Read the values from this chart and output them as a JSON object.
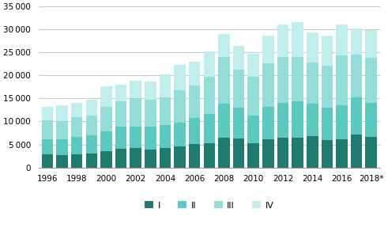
{
  "years": [
    1996,
    1997,
    1998,
    1999,
    2000,
    2001,
    2002,
    2003,
    2004,
    2005,
    2006,
    2007,
    2008,
    2009,
    2010,
    2011,
    2012,
    2013,
    2014,
    2015,
    2016,
    2017,
    2018
  ],
  "Q1": [
    2900,
    2700,
    2900,
    3100,
    3600,
    4100,
    4200,
    3900,
    4300,
    4500,
    5100,
    5300,
    6400,
    6300,
    5200,
    6200,
    6400,
    6400,
    6800,
    6000,
    6100,
    7200,
    6600
  ],
  "Q2": [
    3200,
    3500,
    3700,
    3800,
    4200,
    4700,
    4700,
    5000,
    5000,
    5300,
    5600,
    6300,
    7500,
    6700,
    6000,
    7000,
    7700,
    7900,
    7000,
    7000,
    7500,
    8000,
    7500
  ],
  "Q3": [
    4100,
    3900,
    4400,
    4400,
    5300,
    5600,
    6100,
    5800,
    6000,
    7000,
    7200,
    8200,
    10100,
    8200,
    8500,
    9500,
    10000,
    9800,
    9000,
    9200,
    10700,
    9300,
    9800
  ],
  "Q4": [
    3000,
    3500,
    3100,
    3400,
    4500,
    3600,
    3800,
    3900,
    5000,
    5500,
    5000,
    5500,
    5000,
    5200,
    5000,
    6000,
    7000,
    7500,
    6500,
    6500,
    6800,
    5700,
    6000
  ],
  "colors": [
    "#1e7b6e",
    "#5ac9bf",
    "#93ddd8",
    "#c0eeed"
  ],
  "ylim": [
    0,
    35000
  ],
  "yticks": [
    0,
    5000,
    10000,
    15000,
    20000,
    25000,
    30000,
    35000
  ],
  "legend_labels": [
    "I",
    "II",
    "III",
    "IV"
  ],
  "background_color": "#ffffff",
  "grid_color": "#c8c8c8"
}
